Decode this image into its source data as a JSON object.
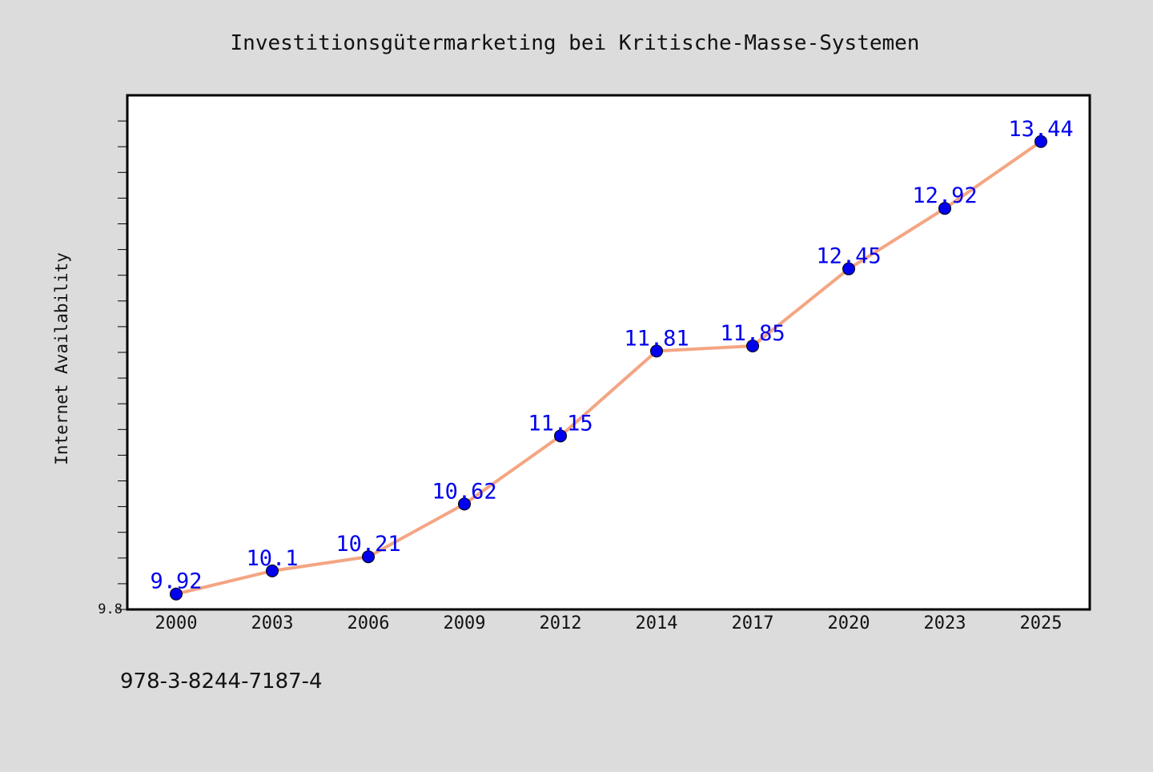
{
  "chart_data": {
    "type": "line",
    "title": "Investitionsgütermarketing bei Kritische-Masse-Systemen",
    "xlabel": "",
    "ylabel": "Internet Availability",
    "categories": [
      "2000",
      "2003",
      "2006",
      "2009",
      "2012",
      "2014",
      "2017",
      "2020",
      "2023",
      "2025"
    ],
    "series": [
      {
        "name": "",
        "values": [
          9.92,
          10.1,
          10.21,
          10.62,
          11.15,
          11.81,
          11.85,
          12.45,
          12.92,
          13.44
        ],
        "labels": [
          "9.92",
          "10.1",
          "10.21",
          "10.62",
          "11.15",
          "11.81",
          "11.85",
          "12.45",
          "12.92",
          "13.44"
        ],
        "line_color": "#f4a582",
        "marker_color": "#0000ee",
        "label_color": "#0000ee"
      }
    ],
    "ylim": [
      9.8,
      13.8
    ],
    "y_tick_labels": [
      "9.8"
    ],
    "grid": false,
    "legend": "none"
  },
  "footer": {
    "isbn": "978-3-8244-7187-4"
  },
  "colors": {
    "background": "#dcdcdc",
    "plot_area": "#ffffff",
    "axis": "#000000"
  }
}
